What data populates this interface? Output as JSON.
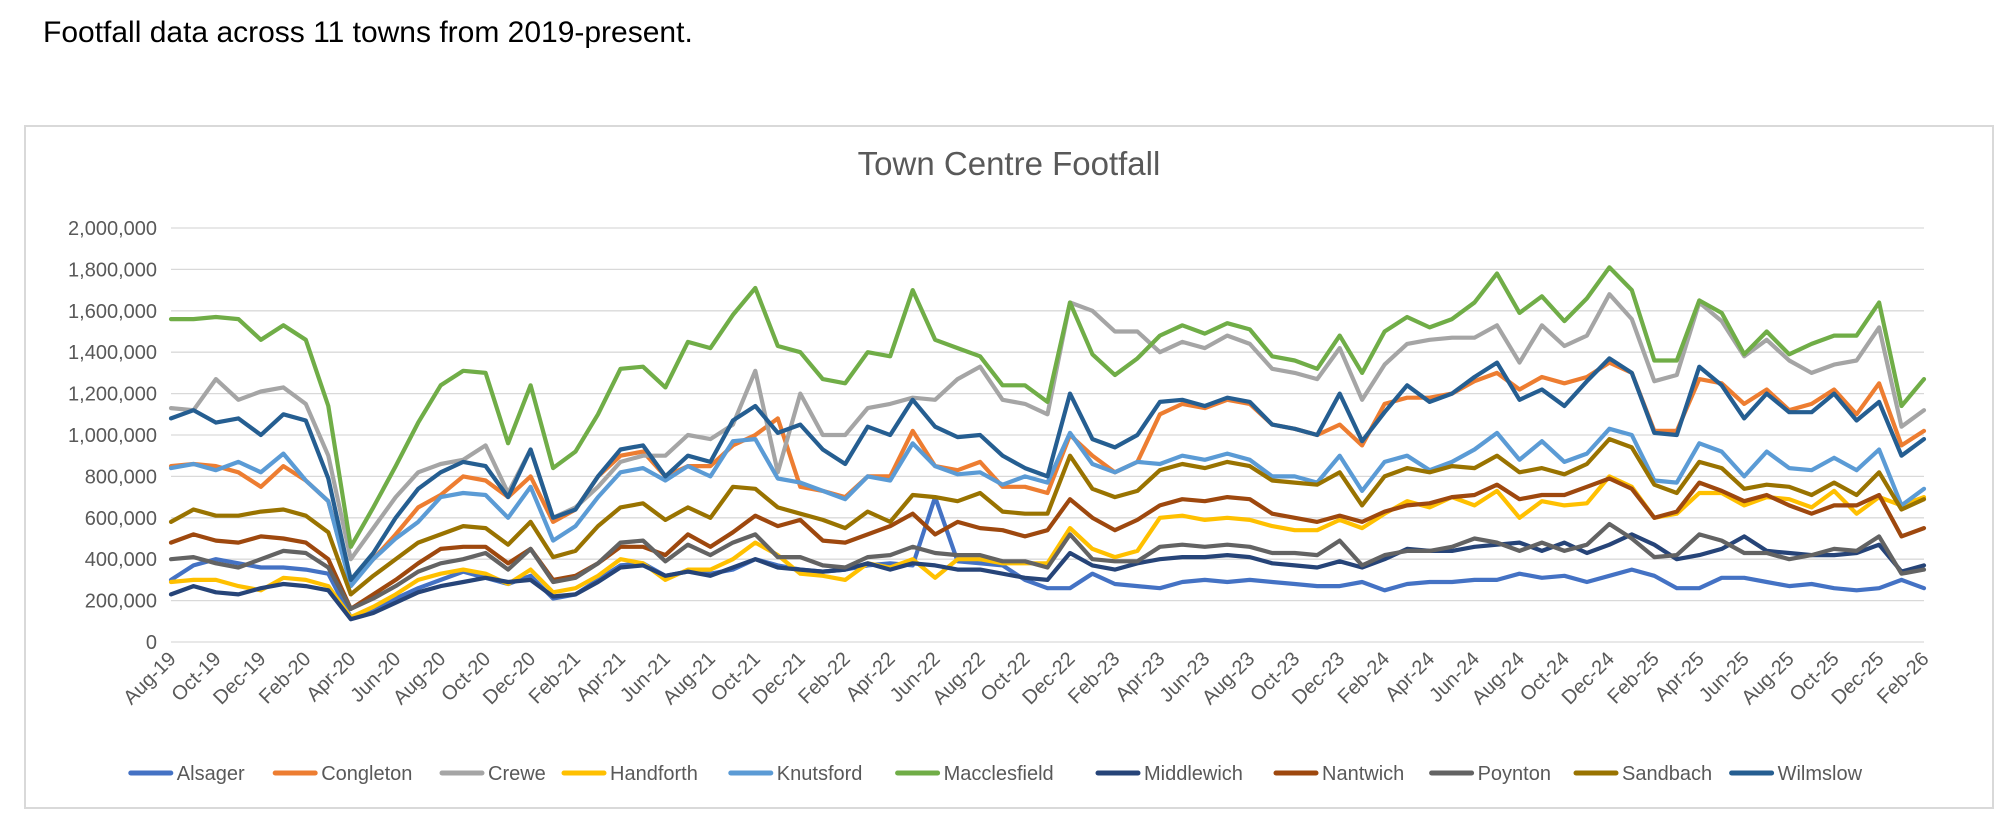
{
  "page": {
    "intro_text": "Footfall data across 11 towns from 2019-present."
  },
  "chart_data": {
    "type": "line",
    "title": "Town Centre Footfall",
    "xlabel": "",
    "ylabel": "",
    "ylim": [
      0,
      2000000
    ],
    "y_ticks": [
      0,
      200000,
      400000,
      600000,
      800000,
      1000000,
      1200000,
      1400000,
      1600000,
      1800000,
      2000000
    ],
    "y_tick_labels": [
      "0",
      "200,000",
      "400,000",
      "600,000",
      "800,000",
      "1,000,000",
      "1,200,000",
      "1,400,000",
      "1,600,000",
      "1,800,000",
      "2,000,000"
    ],
    "grid": true,
    "legend_position": "bottom",
    "x": [
      "Aug-19",
      "Sep-19",
      "Oct-19",
      "Nov-19",
      "Dec-19",
      "Jan-20",
      "Feb-20",
      "Mar-20",
      "Apr-20",
      "May-20",
      "Jun-20",
      "Jul-20",
      "Aug-20",
      "Sep-20",
      "Oct-20",
      "Nov-20",
      "Dec-20",
      "Jan-21",
      "Feb-21",
      "Mar-21",
      "Apr-21",
      "May-21",
      "Jun-21",
      "Jul-21",
      "Aug-21",
      "Sep-21",
      "Oct-21",
      "Nov-21",
      "Dec-21",
      "Jan-22",
      "Feb-22",
      "Mar-22",
      "Apr-22",
      "May-22",
      "Jun-22",
      "Jul-22",
      "Aug-22",
      "Sep-22",
      "Oct-22",
      "Nov-22",
      "Dec-22",
      "Jan-23",
      "Feb-23",
      "Mar-23",
      "Apr-23",
      "May-23",
      "Jun-23",
      "Jul-23",
      "Aug-23",
      "Sep-23",
      "Oct-23",
      "Nov-23",
      "Dec-23",
      "Jan-24",
      "Feb-24",
      "Mar-24",
      "Apr-24",
      "May-24",
      "Jun-24",
      "Jul-24",
      "Aug-24",
      "Sep-24",
      "Oct-24",
      "Nov-24",
      "Dec-24",
      "Jan-25",
      "Feb-25",
      "Mar-25",
      "Apr-25",
      "May-25",
      "Jun-25",
      "Jul-25",
      "Aug-25",
      "Sep-25",
      "Oct-25",
      "Nov-25",
      "Dec-25",
      "Jan-26",
      "Feb-26"
    ],
    "x_tick_labels": [
      "Aug-19",
      "Oct-19",
      "Dec-19",
      "Feb-20",
      "Apr-20",
      "Jun-20",
      "Aug-20",
      "Oct-20",
      "Dec-20",
      "Feb-21",
      "Apr-21",
      "Jun-21",
      "Aug-21",
      "Oct-21",
      "Dec-21",
      "Feb-22",
      "Apr-22",
      "Jun-22",
      "Aug-22",
      "Oct-22",
      "Dec-22",
      "Feb-23",
      "Apr-23",
      "Jun-23",
      "Aug-23",
      "Oct-23",
      "Dec-23",
      "Feb-24",
      "Apr-24",
      "Jun-24",
      "Aug-24",
      "Oct-24",
      "Dec-24",
      "Feb-25",
      "Apr-25",
      "Jun-25",
      "Aug-25",
      "Oct-25",
      "Dec-25",
      "Feb-26"
    ],
    "series": [
      {
        "name": "Alsager",
        "color": "#4472c4",
        "values": [
          300000,
          370000,
          400000,
          380000,
          360000,
          360000,
          350000,
          330000,
          120000,
          160000,
          210000,
          260000,
          300000,
          340000,
          310000,
          280000,
          320000,
          210000,
          230000,
          300000,
          370000,
          380000,
          320000,
          340000,
          330000,
          350000,
          400000,
          370000,
          350000,
          340000,
          350000,
          370000,
          380000,
          370000,
          700000,
          390000,
          380000,
          370000,
          300000,
          260000,
          260000,
          330000,
          280000,
          270000,
          260000,
          290000,
          300000,
          290000,
          300000,
          290000,
          280000,
          270000,
          270000,
          290000,
          250000,
          280000,
          290000,
          290000,
          300000,
          300000,
          330000,
          310000,
          320000,
          290000,
          320000,
          350000,
          320000,
          260000,
          260000,
          310000,
          310000,
          290000,
          270000,
          280000,
          260000,
          250000,
          260000,
          300000,
          260000
        ]
      },
      {
        "name": "Congleton",
        "color": "#ed7d31",
        "values": [
          850000,
          860000,
          850000,
          820000,
          750000,
          850000,
          780000,
          680000,
          280000,
          400000,
          520000,
          650000,
          710000,
          800000,
          780000,
          700000,
          800000,
          580000,
          640000,
          800000,
          900000,
          920000,
          800000,
          850000,
          850000,
          950000,
          1000000,
          1080000,
          750000,
          730000,
          700000,
          800000,
          800000,
          1020000,
          850000,
          830000,
          870000,
          750000,
          750000,
          720000,
          1000000,
          900000,
          820000,
          870000,
          1100000,
          1150000,
          1130000,
          1170000,
          1150000,
          1050000,
          1030000,
          1000000,
          1050000,
          950000,
          1150000,
          1180000,
          1180000,
          1200000,
          1260000,
          1300000,
          1220000,
          1280000,
          1250000,
          1280000,
          1350000,
          1300000,
          1020000,
          1020000,
          1270000,
          1250000,
          1150000,
          1220000,
          1120000,
          1150000,
          1220000,
          1100000,
          1250000,
          950000,
          1020000
        ]
      },
      {
        "name": "Crewe",
        "color": "#a5a5a5",
        "values": [
          1130000,
          1120000,
          1270000,
          1170000,
          1210000,
          1230000,
          1150000,
          900000,
          400000,
          550000,
          700000,
          820000,
          860000,
          880000,
          950000,
          720000,
          930000,
          600000,
          650000,
          750000,
          870000,
          900000,
          900000,
          1000000,
          980000,
          1050000,
          1310000,
          820000,
          1200000,
          1000000,
          1000000,
          1130000,
          1150000,
          1180000,
          1170000,
          1270000,
          1330000,
          1170000,
          1150000,
          1100000,
          1640000,
          1600000,
          1500000,
          1500000,
          1400000,
          1450000,
          1420000,
          1480000,
          1440000,
          1320000,
          1300000,
          1270000,
          1420000,
          1170000,
          1340000,
          1440000,
          1460000,
          1470000,
          1470000,
          1530000,
          1350000,
          1530000,
          1430000,
          1480000,
          1680000,
          1560000,
          1260000,
          1290000,
          1640000,
          1550000,
          1380000,
          1460000,
          1360000,
          1300000,
          1340000,
          1360000,
          1520000,
          1040000,
          1120000
        ]
      },
      {
        "name": "Handforth",
        "color": "#ffc000",
        "values": [
          290000,
          300000,
          300000,
          270000,
          250000,
          310000,
          300000,
          270000,
          120000,
          170000,
          230000,
          300000,
          330000,
          350000,
          330000,
          280000,
          350000,
          240000,
          260000,
          320000,
          400000,
          380000,
          300000,
          350000,
          350000,
          400000,
          480000,
          420000,
          330000,
          320000,
          300000,
          380000,
          360000,
          400000,
          310000,
          400000,
          400000,
          380000,
          380000,
          380000,
          550000,
          450000,
          410000,
          440000,
          600000,
          610000,
          590000,
          600000,
          590000,
          560000,
          540000,
          540000,
          590000,
          550000,
          620000,
          680000,
          650000,
          700000,
          660000,
          730000,
          600000,
          680000,
          660000,
          670000,
          800000,
          750000,
          600000,
          620000,
          720000,
          720000,
          660000,
          700000,
          690000,
          650000,
          730000,
          620000,
          700000,
          660000,
          700000
        ]
      },
      {
        "name": "Knutsford",
        "color": "#5b9bd5",
        "values": [
          840000,
          860000,
          830000,
          870000,
          820000,
          910000,
          780000,
          680000,
          270000,
          400000,
          500000,
          580000,
          700000,
          720000,
          710000,
          600000,
          750000,
          490000,
          560000,
          700000,
          820000,
          840000,
          780000,
          850000,
          800000,
          970000,
          980000,
          790000,
          770000,
          730000,
          690000,
          800000,
          780000,
          960000,
          850000,
          810000,
          820000,
          760000,
          800000,
          770000,
          1010000,
          860000,
          820000,
          870000,
          860000,
          900000,
          880000,
          910000,
          880000,
          800000,
          800000,
          770000,
          900000,
          730000,
          870000,
          900000,
          830000,
          870000,
          930000,
          1010000,
          880000,
          970000,
          870000,
          910000,
          1030000,
          1000000,
          780000,
          770000,
          960000,
          920000,
          800000,
          920000,
          840000,
          830000,
          890000,
          830000,
          930000,
          660000,
          740000
        ]
      },
      {
        "name": "Macclesfield",
        "color": "#70ad47",
        "values": [
          1560000,
          1560000,
          1570000,
          1560000,
          1460000,
          1530000,
          1460000,
          1140000,
          460000,
          650000,
          850000,
          1060000,
          1240000,
          1310000,
          1300000,
          960000,
          1240000,
          840000,
          920000,
          1100000,
          1320000,
          1330000,
          1230000,
          1450000,
          1420000,
          1580000,
          1710000,
          1430000,
          1400000,
          1270000,
          1250000,
          1400000,
          1380000,
          1700000,
          1460000,
          1420000,
          1380000,
          1240000,
          1240000,
          1160000,
          1640000,
          1390000,
          1290000,
          1370000,
          1480000,
          1530000,
          1490000,
          1540000,
          1510000,
          1380000,
          1360000,
          1320000,
          1480000,
          1300000,
          1500000,
          1570000,
          1520000,
          1560000,
          1640000,
          1780000,
          1590000,
          1670000,
          1550000,
          1660000,
          1810000,
          1700000,
          1360000,
          1360000,
          1650000,
          1590000,
          1390000,
          1500000,
          1390000,
          1440000,
          1480000,
          1480000,
          1640000,
          1140000,
          1270000
        ]
      },
      {
        "name": "Middlewich",
        "color": "#264478",
        "values": [
          230000,
          270000,
          240000,
          230000,
          260000,
          280000,
          270000,
          250000,
          110000,
          140000,
          190000,
          240000,
          270000,
          290000,
          310000,
          290000,
          300000,
          220000,
          230000,
          290000,
          360000,
          370000,
          320000,
          340000,
          320000,
          360000,
          400000,
          360000,
          350000,
          340000,
          350000,
          380000,
          350000,
          380000,
          370000,
          350000,
          350000,
          330000,
          310000,
          300000,
          430000,
          370000,
          350000,
          380000,
          400000,
          410000,
          410000,
          420000,
          410000,
          380000,
          370000,
          360000,
          390000,
          360000,
          400000,
          450000,
          440000,
          440000,
          460000,
          470000,
          480000,
          440000,
          480000,
          430000,
          470000,
          520000,
          470000,
          400000,
          420000,
          450000,
          510000,
          440000,
          430000,
          420000,
          420000,
          430000,
          470000,
          340000,
          370000
        ]
      },
      {
        "name": "Nantwich",
        "color": "#9e480e",
        "values": [
          480000,
          520000,
          490000,
          480000,
          510000,
          500000,
          480000,
          400000,
          160000,
          230000,
          300000,
          380000,
          450000,
          460000,
          460000,
          380000,
          450000,
          300000,
          320000,
          380000,
          460000,
          460000,
          420000,
          520000,
          460000,
          530000,
          610000,
          560000,
          590000,
          490000,
          480000,
          520000,
          560000,
          620000,
          520000,
          580000,
          550000,
          540000,
          510000,
          540000,
          690000,
          600000,
          540000,
          590000,
          660000,
          690000,
          680000,
          700000,
          690000,
          620000,
          600000,
          580000,
          610000,
          580000,
          630000,
          660000,
          670000,
          700000,
          710000,
          760000,
          690000,
          710000,
          710000,
          750000,
          790000,
          740000,
          600000,
          630000,
          770000,
          730000,
          680000,
          710000,
          660000,
          620000,
          660000,
          660000,
          710000,
          510000,
          550000
        ]
      },
      {
        "name": "Poynton",
        "color": "#636363",
        "values": [
          400000,
          410000,
          380000,
          360000,
          400000,
          440000,
          430000,
          360000,
          160000,
          210000,
          270000,
          340000,
          380000,
          400000,
          430000,
          350000,
          450000,
          290000,
          310000,
          380000,
          480000,
          490000,
          390000,
          470000,
          420000,
          480000,
          520000,
          410000,
          410000,
          370000,
          360000,
          410000,
          420000,
          460000,
          430000,
          420000,
          420000,
          390000,
          390000,
          360000,
          520000,
          400000,
          390000,
          390000,
          460000,
          470000,
          460000,
          470000,
          460000,
          430000,
          430000,
          420000,
          490000,
          370000,
          420000,
          440000,
          440000,
          460000,
          500000,
          480000,
          440000,
          480000,
          440000,
          470000,
          570000,
          500000,
          410000,
          420000,
          520000,
          490000,
          430000,
          430000,
          400000,
          420000,
          450000,
          440000,
          510000,
          330000,
          350000
        ]
      },
      {
        "name": "Sandbach",
        "color": "#997300",
        "values": [
          580000,
          640000,
          610000,
          610000,
          630000,
          640000,
          610000,
          530000,
          230000,
          320000,
          400000,
          480000,
          520000,
          560000,
          550000,
          470000,
          580000,
          410000,
          440000,
          560000,
          650000,
          670000,
          590000,
          650000,
          600000,
          750000,
          740000,
          650000,
          620000,
          590000,
          550000,
          630000,
          580000,
          710000,
          700000,
          680000,
          720000,
          630000,
          620000,
          620000,
          900000,
          740000,
          700000,
          730000,
          830000,
          860000,
          840000,
          870000,
          850000,
          780000,
          770000,
          760000,
          820000,
          660000,
          800000,
          840000,
          820000,
          850000,
          840000,
          900000,
          820000,
          840000,
          810000,
          860000,
          980000,
          940000,
          760000,
          720000,
          870000,
          840000,
          740000,
          760000,
          750000,
          710000,
          770000,
          710000,
          820000,
          640000,
          690000
        ]
      },
      {
        "name": "Wilmslow",
        "color": "#255e91",
        "values": [
          1080000,
          1120000,
          1060000,
          1080000,
          1000000,
          1100000,
          1070000,
          790000,
          300000,
          430000,
          600000,
          740000,
          820000,
          870000,
          850000,
          700000,
          930000,
          600000,
          640000,
          800000,
          930000,
          950000,
          800000,
          900000,
          870000,
          1070000,
          1140000,
          1010000,
          1050000,
          930000,
          860000,
          1040000,
          1000000,
          1170000,
          1040000,
          990000,
          1000000,
          900000,
          840000,
          800000,
          1200000,
          980000,
          940000,
          1000000,
          1160000,
          1170000,
          1140000,
          1180000,
          1160000,
          1050000,
          1030000,
          1000000,
          1200000,
          970000,
          1110000,
          1240000,
          1160000,
          1200000,
          1280000,
          1350000,
          1170000,
          1220000,
          1140000,
          1260000,
          1370000,
          1300000,
          1010000,
          1000000,
          1330000,
          1240000,
          1080000,
          1200000,
          1110000,
          1110000,
          1200000,
          1070000,
          1160000,
          900000,
          980000
        ]
      }
    ]
  }
}
